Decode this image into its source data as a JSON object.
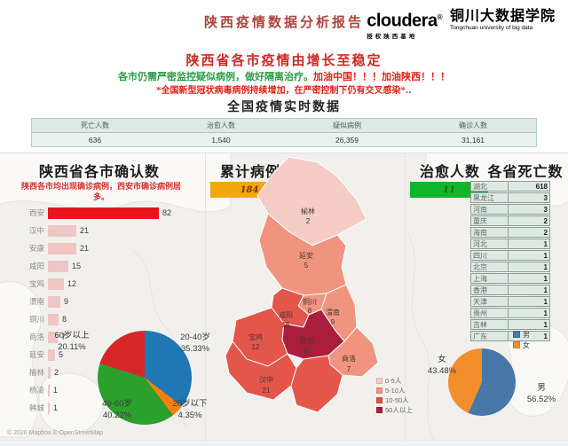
{
  "colors": {
    "title_red": "#b0433c",
    "cloudera_blue": "#1095d5",
    "bar_hot": "#e8151d",
    "bar_light": "#eec6c4",
    "badge_orange": "#f3a70f",
    "badge_green": "#12b42c"
  },
  "header": {
    "title": "陕西疫情数据分析报告",
    "logo": {
      "brand": "cloudera",
      "reg": "®",
      "brand_sub": "授权陕西基地",
      "org": "铜川大数据学院",
      "org_sub": "Tongchuan university of big data"
    }
  },
  "intro": {
    "headline": "陕西省各市疫情由增长至稳定",
    "note_green": "各市仍需严密监控疑似病例，做好隔离治疗。",
    "note_red": "加油中国！！！加油陕西！！！",
    "warning": "*全国新型冠状病毒病例持续增加，在严密控制下仍有交叉感染*..",
    "section_title": "全国疫情实时数据"
  },
  "cured_panel": {
    "title": "治愈人数",
    "value": "11"
  },
  "footer": {
    "attribution": "© 2020 Mapbox © OpenStreetMap"
  },
  "chart_data": [
    {
      "id": "national_stats",
      "type": "table",
      "columns": [
        "死亡人数",
        "治愈人数",
        "疑似病例",
        "确诊人数"
      ],
      "values": [
        "636",
        "1,540",
        "26,359",
        "31,161"
      ]
    },
    {
      "id": "city_bars",
      "type": "bar",
      "orientation": "horizontal",
      "title": "陕西省各市确认数",
      "subtitle": "陕西各市均出现确诊病例，西安市确诊病例居多。",
      "categories": [
        "西安",
        "汉中",
        "安康",
        "咸阳",
        "宝鸡",
        "渭南",
        "铜川",
        "商洛",
        "延安",
        "榆林",
        "杨凌",
        "韩城"
      ],
      "values": [
        82,
        21,
        21,
        15,
        12,
        9,
        8,
        7,
        5,
        2,
        1,
        1
      ],
      "xmax": 82
    },
    {
      "id": "shaanxi_map",
      "type": "heatmap",
      "title": "累计病例",
      "total_badge": "184",
      "regions": [
        {
          "name": "榆林",
          "value": 2,
          "color": "#f6cdc6"
        },
        {
          "name": "延安",
          "value": 5,
          "color": "#f0947f"
        },
        {
          "name": "铜川",
          "value": 8,
          "color": "#f0947f"
        },
        {
          "name": "渭南",
          "value": 9,
          "color": "#f0947f"
        },
        {
          "name": "咸阳",
          "value": 15,
          "color": "#e4554a"
        },
        {
          "name": "宝鸡",
          "value": 12,
          "color": "#e4554a"
        },
        {
          "name": "西安",
          "value": 82,
          "color": "#ab1d3d"
        },
        {
          "name": "商洛",
          "value": 7,
          "color": "#f0947f"
        },
        {
          "name": "汉中",
          "value": 21,
          "color": "#e4554a"
        },
        {
          "name": "安康",
          "value": 21,
          "color": "#e4554a"
        }
      ],
      "legend": [
        {
          "label": "0-5人",
          "color": "#f6cdc6"
        },
        {
          "label": "5-10人",
          "color": "#f0947f"
        },
        {
          "label": "10-50人",
          "color": "#e04f43"
        },
        {
          "label": "50人以上",
          "color": "#a81d3c"
        }
      ]
    },
    {
      "id": "age_pie",
      "type": "pie",
      "slices": [
        {
          "label": "20-40岁",
          "pct": 35.33,
          "pct_text": "35.33%",
          "color": "#1f77b4"
        },
        {
          "label": "20岁以下",
          "pct": 4.35,
          "pct_text": "4.35%",
          "color": "#ff7f0e"
        },
        {
          "label": "40-60岁",
          "pct": 40.22,
          "pct_text": "40.22%",
          "color": "#2ca02c"
        },
        {
          "label": "60岁以上",
          "pct": 20.11,
          "pct_text": "20.11%",
          "color": "#d62728"
        }
      ]
    },
    {
      "id": "province_deaths",
      "type": "table",
      "title": "各省死亡数",
      "rows": [
        [
          "湖北",
          "618"
        ],
        [
          "黑龙江",
          "3"
        ],
        [
          "河南",
          "3"
        ],
        [
          "重庆",
          "2"
        ],
        [
          "海南",
          "2"
        ],
        [
          "河北",
          "1"
        ],
        [
          "四川",
          "1"
        ],
        [
          "北京",
          "1"
        ],
        [
          "上海",
          "1"
        ],
        [
          "香港",
          "1"
        ],
        [
          "天津",
          "1"
        ],
        [
          "贵州",
          "1"
        ],
        [
          "吉林",
          "1"
        ],
        [
          "广东",
          "1"
        ]
      ]
    },
    {
      "id": "gender_pie",
      "type": "pie",
      "legend_labels": [
        "男",
        "女"
      ],
      "slices": [
        {
          "label": "男",
          "pct": 56.52,
          "pct_text": "56.52%",
          "color": "#4878a8"
        },
        {
          "label": "女",
          "pct": 43.48,
          "pct_text": "43.48%",
          "color": "#f28e2b"
        }
      ]
    }
  ]
}
